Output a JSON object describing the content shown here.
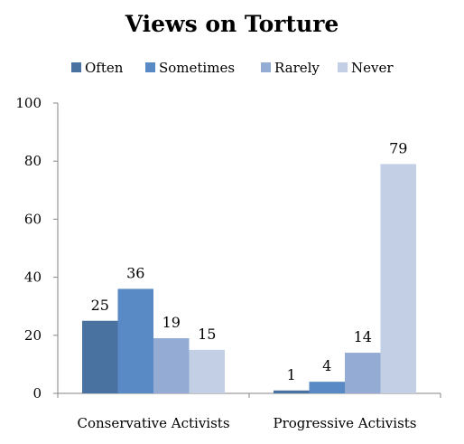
{
  "chart_data": {
    "type": "bar",
    "title": "Views on Torture",
    "categories": [
      "Conservative Activists",
      "Progressive Activists"
    ],
    "series": [
      {
        "name": "Often",
        "color": "#4a72a0",
        "values": [
          25,
          1
        ]
      },
      {
        "name": "Sometimes",
        "color": "#5a8ac6",
        "values": [
          36,
          4
        ]
      },
      {
        "name": "Rarely",
        "color": "#94acd4",
        "values": [
          19,
          14
        ]
      },
      {
        "name": "Never",
        "color": "#c2cfe4",
        "values": [
          15,
          79
        ]
      }
    ],
    "y_ticks": [
      0,
      20,
      40,
      60,
      80,
      100
    ],
    "ylim": [
      0,
      100
    ],
    "legend_position": "top",
    "grid": false,
    "xlabel": "",
    "ylabel": ""
  }
}
